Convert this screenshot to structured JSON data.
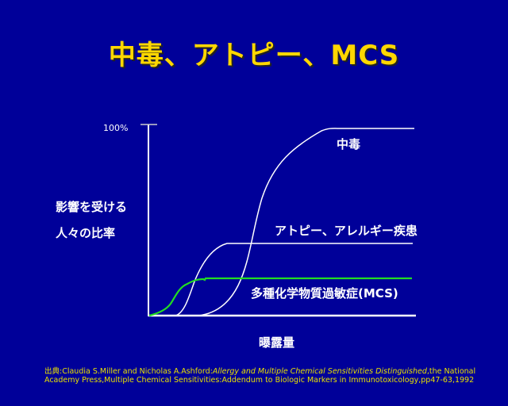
{
  "title": "中毒、アトピー、MCS",
  "y_tick": "100%",
  "y_label": [
    "影響を受ける",
    "人々の比率"
  ],
  "x_label": "曝露量",
  "curves": {
    "poisoning": "中毒",
    "atopy": "アトピー、アレルギー疾患",
    "mcs": "多種化学物質過敏症(MCS)"
  },
  "colors": {
    "background": "#000099",
    "title": "#ffd700",
    "axis": "#ffffff",
    "mcs": "#22dd22",
    "citation": "#e8e000"
  },
  "citation": {
    "line1_prefix": "出典:Claudia S.Miller and Nicholas A.Ashford:",
    "line1_title": "Allergy and Multiple Chemical Sensitivities Distinguished",
    "line1_suffix": ",the National",
    "line2": "Academy Press,Multiple Chemical Sensitivities:Addendum to Biologic Markers in Immunotoxicology,pp47-63,1992"
  }
}
